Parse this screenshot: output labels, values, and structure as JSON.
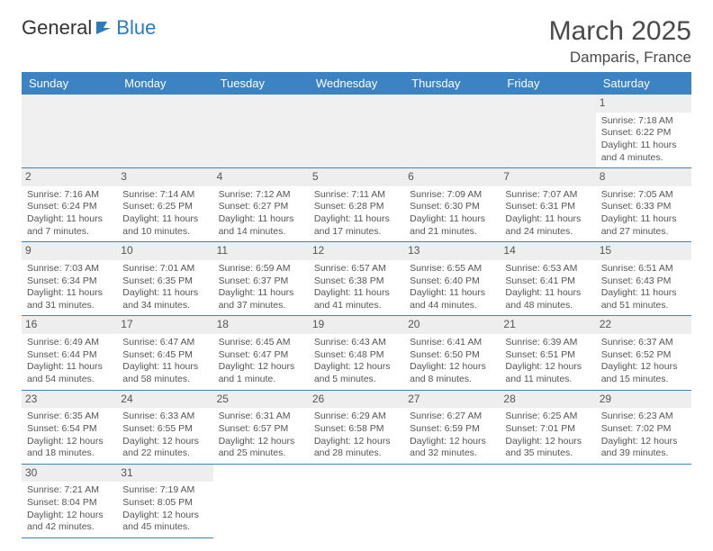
{
  "brand": {
    "part1": "General",
    "part2": "Blue"
  },
  "title": "March 2025",
  "location": "Damparis, France",
  "colors": {
    "header_bg": "#3c83c3",
    "header_text": "#ffffff",
    "daynum_bg": "#eeeeee",
    "border": "#3c83c3",
    "text": "#555555",
    "brand_blue": "#2b7bbf"
  },
  "weekdays": [
    "Sunday",
    "Monday",
    "Tuesday",
    "Wednesday",
    "Thursday",
    "Friday",
    "Saturday"
  ],
  "weeks": [
    [
      null,
      null,
      null,
      null,
      null,
      null,
      {
        "n": "1",
        "sr": "Sunrise: 7:18 AM",
        "ss": "Sunset: 6:22 PM",
        "dl": "Daylight: 11 hours and 4 minutes."
      }
    ],
    [
      {
        "n": "2",
        "sr": "Sunrise: 7:16 AM",
        "ss": "Sunset: 6:24 PM",
        "dl": "Daylight: 11 hours and 7 minutes."
      },
      {
        "n": "3",
        "sr": "Sunrise: 7:14 AM",
        "ss": "Sunset: 6:25 PM",
        "dl": "Daylight: 11 hours and 10 minutes."
      },
      {
        "n": "4",
        "sr": "Sunrise: 7:12 AM",
        "ss": "Sunset: 6:27 PM",
        "dl": "Daylight: 11 hours and 14 minutes."
      },
      {
        "n": "5",
        "sr": "Sunrise: 7:11 AM",
        "ss": "Sunset: 6:28 PM",
        "dl": "Daylight: 11 hours and 17 minutes."
      },
      {
        "n": "6",
        "sr": "Sunrise: 7:09 AM",
        "ss": "Sunset: 6:30 PM",
        "dl": "Daylight: 11 hours and 21 minutes."
      },
      {
        "n": "7",
        "sr": "Sunrise: 7:07 AM",
        "ss": "Sunset: 6:31 PM",
        "dl": "Daylight: 11 hours and 24 minutes."
      },
      {
        "n": "8",
        "sr": "Sunrise: 7:05 AM",
        "ss": "Sunset: 6:33 PM",
        "dl": "Daylight: 11 hours and 27 minutes."
      }
    ],
    [
      {
        "n": "9",
        "sr": "Sunrise: 7:03 AM",
        "ss": "Sunset: 6:34 PM",
        "dl": "Daylight: 11 hours and 31 minutes."
      },
      {
        "n": "10",
        "sr": "Sunrise: 7:01 AM",
        "ss": "Sunset: 6:35 PM",
        "dl": "Daylight: 11 hours and 34 minutes."
      },
      {
        "n": "11",
        "sr": "Sunrise: 6:59 AM",
        "ss": "Sunset: 6:37 PM",
        "dl": "Daylight: 11 hours and 37 minutes."
      },
      {
        "n": "12",
        "sr": "Sunrise: 6:57 AM",
        "ss": "Sunset: 6:38 PM",
        "dl": "Daylight: 11 hours and 41 minutes."
      },
      {
        "n": "13",
        "sr": "Sunrise: 6:55 AM",
        "ss": "Sunset: 6:40 PM",
        "dl": "Daylight: 11 hours and 44 minutes."
      },
      {
        "n": "14",
        "sr": "Sunrise: 6:53 AM",
        "ss": "Sunset: 6:41 PM",
        "dl": "Daylight: 11 hours and 48 minutes."
      },
      {
        "n": "15",
        "sr": "Sunrise: 6:51 AM",
        "ss": "Sunset: 6:43 PM",
        "dl": "Daylight: 11 hours and 51 minutes."
      }
    ],
    [
      {
        "n": "16",
        "sr": "Sunrise: 6:49 AM",
        "ss": "Sunset: 6:44 PM",
        "dl": "Daylight: 11 hours and 54 minutes."
      },
      {
        "n": "17",
        "sr": "Sunrise: 6:47 AM",
        "ss": "Sunset: 6:45 PM",
        "dl": "Daylight: 11 hours and 58 minutes."
      },
      {
        "n": "18",
        "sr": "Sunrise: 6:45 AM",
        "ss": "Sunset: 6:47 PM",
        "dl": "Daylight: 12 hours and 1 minute."
      },
      {
        "n": "19",
        "sr": "Sunrise: 6:43 AM",
        "ss": "Sunset: 6:48 PM",
        "dl": "Daylight: 12 hours and 5 minutes."
      },
      {
        "n": "20",
        "sr": "Sunrise: 6:41 AM",
        "ss": "Sunset: 6:50 PM",
        "dl": "Daylight: 12 hours and 8 minutes."
      },
      {
        "n": "21",
        "sr": "Sunrise: 6:39 AM",
        "ss": "Sunset: 6:51 PM",
        "dl": "Daylight: 12 hours and 11 minutes."
      },
      {
        "n": "22",
        "sr": "Sunrise: 6:37 AM",
        "ss": "Sunset: 6:52 PM",
        "dl": "Daylight: 12 hours and 15 minutes."
      }
    ],
    [
      {
        "n": "23",
        "sr": "Sunrise: 6:35 AM",
        "ss": "Sunset: 6:54 PM",
        "dl": "Daylight: 12 hours and 18 minutes."
      },
      {
        "n": "24",
        "sr": "Sunrise: 6:33 AM",
        "ss": "Sunset: 6:55 PM",
        "dl": "Daylight: 12 hours and 22 minutes."
      },
      {
        "n": "25",
        "sr": "Sunrise: 6:31 AM",
        "ss": "Sunset: 6:57 PM",
        "dl": "Daylight: 12 hours and 25 minutes."
      },
      {
        "n": "26",
        "sr": "Sunrise: 6:29 AM",
        "ss": "Sunset: 6:58 PM",
        "dl": "Daylight: 12 hours and 28 minutes."
      },
      {
        "n": "27",
        "sr": "Sunrise: 6:27 AM",
        "ss": "Sunset: 6:59 PM",
        "dl": "Daylight: 12 hours and 32 minutes."
      },
      {
        "n": "28",
        "sr": "Sunrise: 6:25 AM",
        "ss": "Sunset: 7:01 PM",
        "dl": "Daylight: 12 hours and 35 minutes."
      },
      {
        "n": "29",
        "sr": "Sunrise: 6:23 AM",
        "ss": "Sunset: 7:02 PM",
        "dl": "Daylight: 12 hours and 39 minutes."
      }
    ],
    [
      {
        "n": "30",
        "sr": "Sunrise: 7:21 AM",
        "ss": "Sunset: 8:04 PM",
        "dl": "Daylight: 12 hours and 42 minutes."
      },
      {
        "n": "31",
        "sr": "Sunrise: 7:19 AM",
        "ss": "Sunset: 8:05 PM",
        "dl": "Daylight: 12 hours and 45 minutes."
      },
      null,
      null,
      null,
      null,
      null
    ]
  ]
}
